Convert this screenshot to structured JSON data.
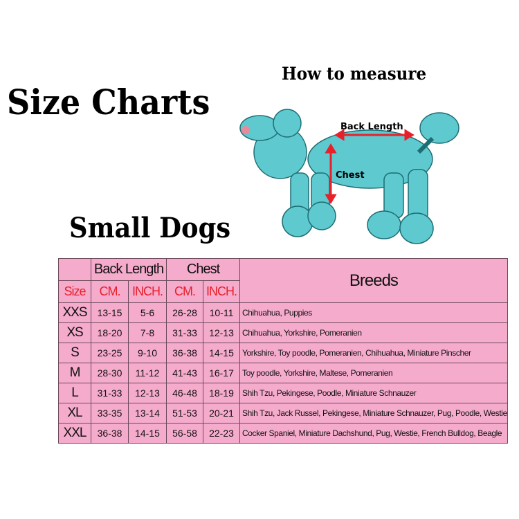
{
  "title": "Size Charts",
  "subtitle": "Small Dogs",
  "measure": {
    "title": "How to measure",
    "back_length": "Back Length",
    "chest": "Chest"
  },
  "colors": {
    "table_bg": "#f5abcc",
    "header_red": "#e8202a",
    "dog": "#5ec9cf",
    "arrow": "#e8202a"
  },
  "table": {
    "group_headers": [
      "Back Length",
      "Chest"
    ],
    "size_header": "Size",
    "unit_headers": [
      "CM.",
      "INCH.",
      "CM.",
      "INCH."
    ],
    "breeds_header": "Breeds",
    "rows": [
      {
        "size": "XXS",
        "bl_cm": "13-15",
        "bl_in": "5-6",
        "ch_cm": "26-28",
        "ch_in": "10-11",
        "breeds": "Chihuahua, Puppies"
      },
      {
        "size": "XS",
        "bl_cm": "18-20",
        "bl_in": "7-8",
        "ch_cm": "31-33",
        "ch_in": "12-13",
        "breeds": "Chihuahua, Yorkshire, Pomeranien"
      },
      {
        "size": "S",
        "bl_cm": "23-25",
        "bl_in": "9-10",
        "ch_cm": "36-38",
        "ch_in": "14-15",
        "breeds": "Yorkshire, Toy poodle, Pomeranien, Chihuahua, Miniature Pinscher"
      },
      {
        "size": "M",
        "bl_cm": "28-30",
        "bl_in": "11-12",
        "ch_cm": "41-43",
        "ch_in": "16-17",
        "breeds": "Toy poodle, Yorkshire, Maltese, Pomeranien"
      },
      {
        "size": "L",
        "bl_cm": "31-33",
        "bl_in": "12-13",
        "ch_cm": "46-48",
        "ch_in": "18-19",
        "breeds": "Shih Tzu, Pekingese, Poodle, Miniature Schnauzer"
      },
      {
        "size": "XL",
        "bl_cm": "33-35",
        "bl_in": "13-14",
        "ch_cm": "51-53",
        "ch_in": "20-21",
        "breeds": "Shih Tzu, Jack Russel, Pekingese, Miniature Schnauzer, Pug, Poodle, Westie"
      },
      {
        "size": "XXL",
        "bl_cm": "36-38",
        "bl_in": "14-15",
        "ch_cm": "56-58",
        "ch_in": "22-23",
        "breeds": "Cocker Spaniel, Miniature Dachshund, Pug, Westie, French Bulldog, Beagle"
      }
    ]
  }
}
